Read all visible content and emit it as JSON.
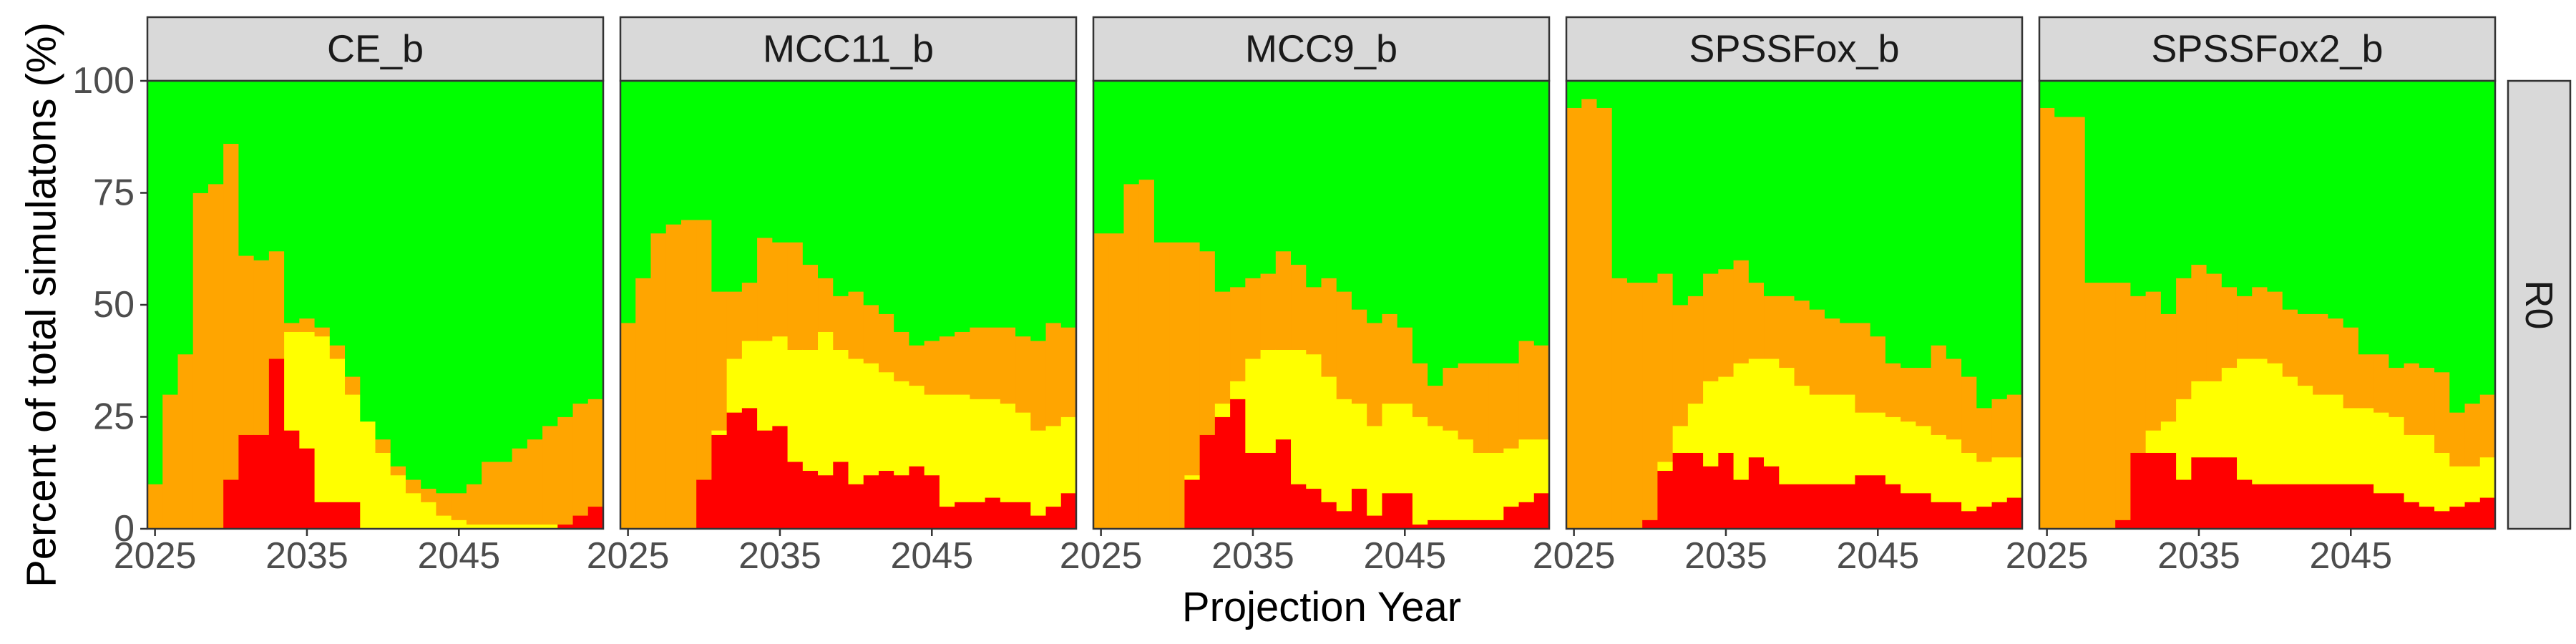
{
  "chart_data": {
    "type": "area",
    "chart_style": "stacked stepped area (filled bars per year), faceted",
    "xlabel": "Projection Year",
    "ylabel": "Percent of total simulatons (%)",
    "xlim": [
      2024.5,
      2054.5
    ],
    "ylim": [
      0,
      100
    ],
    "x_ticks": [
      2025,
      2035,
      2045
    ],
    "x_tick_labels": [
      "2025",
      "2035",
      "2045"
    ],
    "y_ticks": [
      0,
      25,
      50,
      75,
      100
    ],
    "y_tick_labels": [
      "0",
      "25",
      "50",
      "75",
      "100"
    ],
    "row_strip_label": "R0",
    "colors": {
      "red": "#ff0000",
      "yellow": "#ffff00",
      "orange": "#ffa500",
      "green": "#00ff00"
    },
    "stack_order_bottom_to_top": [
      "red",
      "yellow",
      "orange",
      "green"
    ],
    "years": [
      2025,
      2026,
      2027,
      2028,
      2029,
      2030,
      2031,
      2032,
      2033,
      2034,
      2035,
      2036,
      2037,
      2038,
      2039,
      2040,
      2041,
      2042,
      2043,
      2044,
      2045,
      2046,
      2047,
      2048,
      2049,
      2050,
      2051,
      2052,
      2053,
      2054
    ],
    "panels": [
      {
        "label": "CE_b",
        "red_top": [
          0,
          0,
          0,
          0,
          0,
          11,
          21,
          21,
          38,
          22,
          18,
          6,
          6,
          6,
          0,
          0,
          0,
          0,
          0,
          0,
          0,
          0,
          0,
          0,
          0,
          0,
          0,
          1,
          3,
          5
        ],
        "yellow_top": [
          0,
          0,
          0,
          0,
          0,
          11,
          21,
          21,
          38,
          44,
          44,
          43,
          38,
          30,
          24,
          17,
          12,
          8,
          6,
          3,
          2,
          1,
          1,
          1,
          1,
          1,
          1,
          1,
          3,
          5
        ],
        "orange_top": [
          10,
          30,
          39,
          75,
          77,
          86,
          61,
          60,
          62,
          46,
          47,
          45,
          41,
          34,
          24,
          20,
          14,
          11,
          9,
          8,
          8,
          10,
          15,
          15,
          18,
          20,
          23,
          25,
          28,
          29
        ]
      },
      {
        "label": "MCC11_b",
        "red_top": [
          0,
          0,
          0,
          0,
          0,
          11,
          21,
          26,
          27,
          22,
          23,
          15,
          13,
          12,
          15,
          10,
          12,
          13,
          12,
          14,
          12,
          5,
          6,
          6,
          7,
          6,
          6,
          3,
          5,
          8
        ],
        "yellow_top": [
          0,
          0,
          0,
          0,
          0,
          11,
          22,
          38,
          42,
          42,
          43,
          40,
          40,
          44,
          40,
          38,
          37,
          35,
          33,
          32,
          30,
          30,
          30,
          29,
          29,
          28,
          26,
          22,
          23,
          25
        ],
        "orange_top": [
          46,
          56,
          66,
          68,
          69,
          69,
          53,
          53,
          55,
          65,
          64,
          64,
          59,
          56,
          52,
          53,
          50,
          48,
          44,
          41,
          42,
          43,
          44,
          45,
          45,
          45,
          43,
          42,
          46,
          45
        ]
      },
      {
        "label": "MCC9_b",
        "red_top": [
          0,
          0,
          0,
          0,
          0,
          0,
          11,
          21,
          25,
          29,
          17,
          17,
          20,
          10,
          9,
          6,
          4,
          9,
          3,
          8,
          8,
          1,
          2,
          2,
          2,
          2,
          2,
          5,
          6,
          8
        ],
        "yellow_top": [
          0,
          0,
          0,
          0,
          0,
          0,
          12,
          21,
          28,
          33,
          38,
          40,
          40,
          40,
          39,
          34,
          29,
          28,
          23,
          28,
          28,
          25,
          23,
          22,
          20,
          17,
          17,
          18,
          20,
          20
        ],
        "orange_top": [
          66,
          66,
          77,
          78,
          64,
          64,
          64,
          62,
          53,
          54,
          56,
          57,
          62,
          59,
          54,
          56,
          53,
          49,
          46,
          48,
          45,
          37,
          32,
          36,
          37,
          37,
          37,
          37,
          42,
          41
        ]
      },
      {
        "label": "SPSSFox_b",
        "red_top": [
          0,
          0,
          0,
          0,
          0,
          2,
          13,
          17,
          17,
          14,
          17,
          11,
          16,
          14,
          10,
          10,
          10,
          10,
          10,
          12,
          12,
          10,
          8,
          8,
          6,
          6,
          4,
          5,
          6,
          7
        ],
        "yellow_top": [
          0,
          0,
          0,
          0,
          0,
          2,
          15,
          23,
          28,
          33,
          34,
          37,
          38,
          38,
          36,
          32,
          30,
          30,
          30,
          26,
          26,
          25,
          24,
          23,
          21,
          20,
          17,
          15,
          16,
          16
        ],
        "orange_top": [
          94,
          96,
          94,
          56,
          55,
          55,
          57,
          50,
          52,
          57,
          58,
          60,
          55,
          52,
          52,
          51,
          49,
          47,
          46,
          46,
          43,
          37,
          36,
          36,
          41,
          38,
          34,
          27,
          29,
          30
        ]
      },
      {
        "label": "SPSSFox2_b",
        "red_top": [
          0,
          0,
          0,
          0,
          0,
          2,
          17,
          17,
          17,
          11,
          16,
          16,
          16,
          11,
          10,
          10,
          10,
          10,
          10,
          10,
          10,
          10,
          8,
          8,
          6,
          5,
          4,
          5,
          6,
          7
        ],
        "yellow_top": [
          0,
          0,
          0,
          0,
          0,
          2,
          17,
          22,
          24,
          29,
          33,
          33,
          36,
          38,
          38,
          37,
          34,
          32,
          30,
          30,
          27,
          27,
          26,
          25,
          21,
          21,
          17,
          14,
          14,
          16
        ],
        "orange_top": [
          94,
          92,
          92,
          55,
          55,
          55,
          52,
          53,
          48,
          56,
          59,
          57,
          54,
          52,
          54,
          53,
          49,
          48,
          48,
          47,
          45,
          39,
          39,
          36,
          37,
          36,
          35,
          26,
          28,
          30
        ]
      }
    ]
  }
}
